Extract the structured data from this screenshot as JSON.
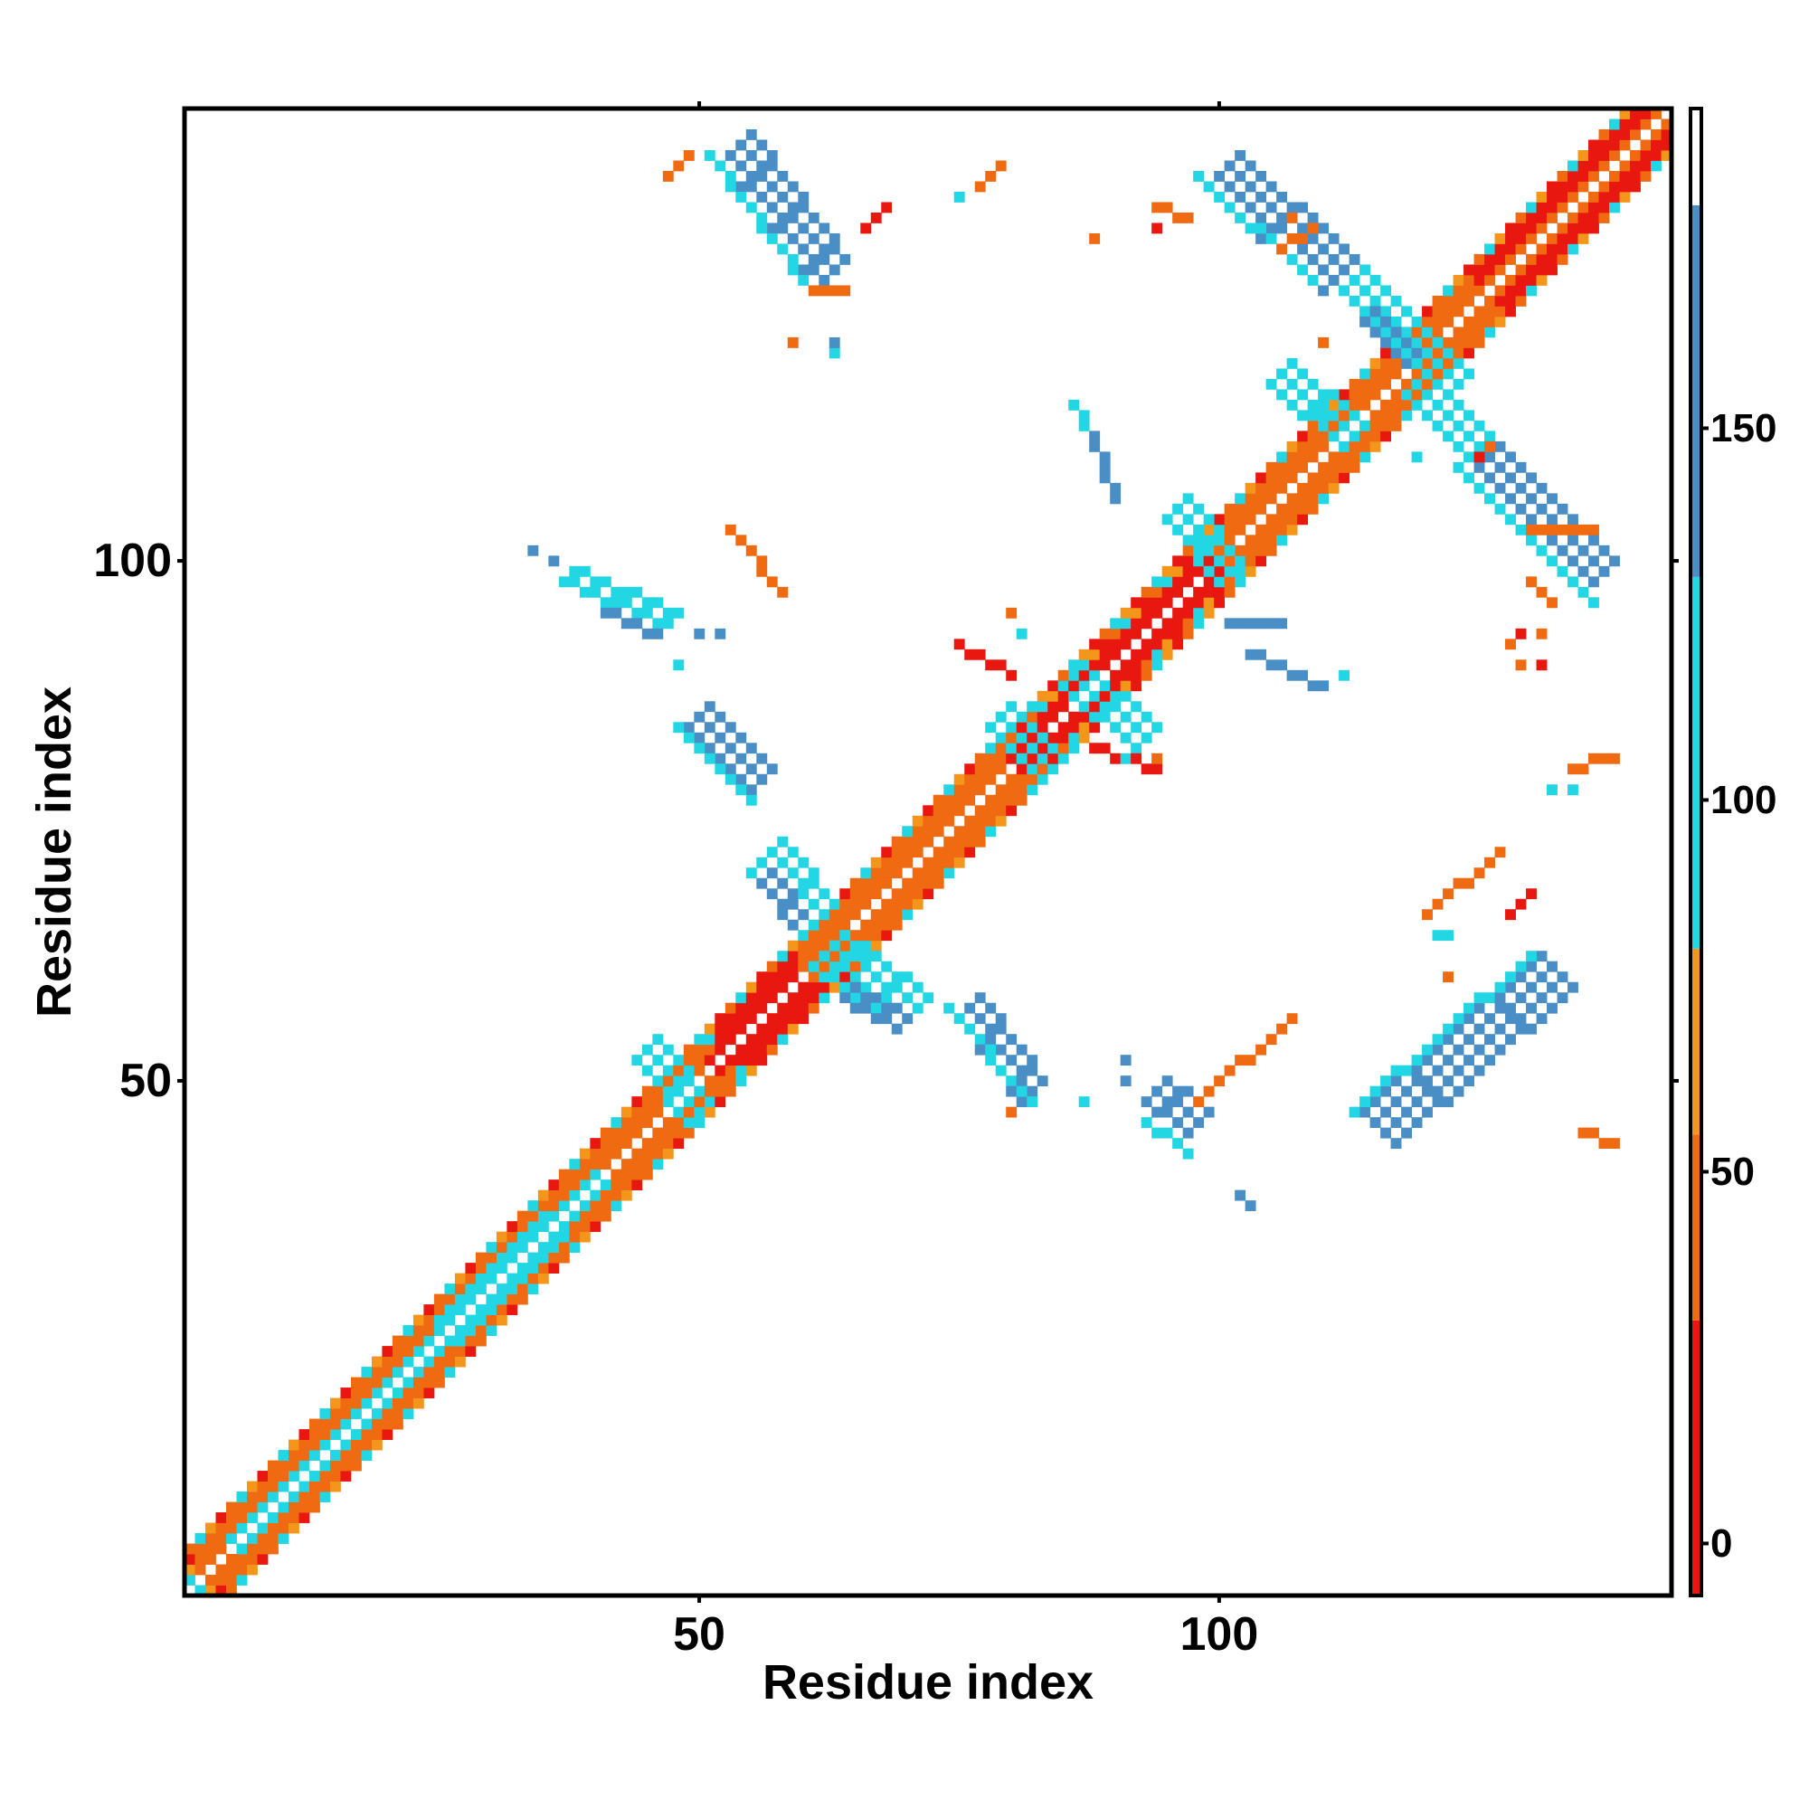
{
  "chart_data": {
    "type": "heatmap",
    "title": "",
    "xlabel": "Residue index",
    "ylabel": "Residue index",
    "xlim": [
      1,
      143
    ],
    "ylim": [
      1,
      143
    ],
    "x_ticks": [
      {
        "value": 50,
        "label": "50"
      },
      {
        "value": 100,
        "label": "100"
      }
    ],
    "y_ticks": [
      {
        "value": 50,
        "label": "50"
      },
      {
        "value": 100,
        "label": "100"
      }
    ],
    "colorbar": {
      "ticks": [
        {
          "value": 0,
          "label": "0"
        },
        {
          "value": 50,
          "label": "50"
        },
        {
          "value": 100,
          "label": "100"
        },
        {
          "value": 150,
          "label": "150"
        }
      ],
      "range": [
        -7,
        193
      ],
      "bands": [
        {
          "from": -7,
          "to": 30,
          "color": "#e8170f"
        },
        {
          "from": 30,
          "to": 55,
          "color": "#f06a12"
        },
        {
          "from": 55,
          "to": 80,
          "color": "#f4961c"
        },
        {
          "from": 80,
          "to": 130,
          "color": "#22d6e4"
        },
        {
          "from": 130,
          "to": 180,
          "color": "#4a8ec6"
        },
        {
          "from": 180,
          "to": 193,
          "color": "#ffffff"
        }
      ]
    },
    "palette": {
      "red": "#e8170f",
      "orange": "#f06a12",
      "amber": "#f4961c",
      "cyan": "#22d6e4",
      "lightblue": "#2fbde0",
      "steel": "#4a8ec6"
    },
    "diagonal": {
      "from": 1,
      "to": 143,
      "band_offsets": [
        1,
        2,
        3,
        4
      ]
    },
    "segments": [
      {
        "x": [
          2,
          50
        ],
        "y": [
          2,
          50
        ],
        "offsets": [
          1,
          2,
          3
        ],
        "color": "orange",
        "w": 1
      },
      {
        "x": [
          5,
          40
        ],
        "y": [
          5,
          40
        ],
        "offsets": [
          1
        ],
        "color": "cyan",
        "w": 1
      },
      {
        "x": [
          52,
          60
        ],
        "y": [
          52,
          60
        ],
        "offsets": [
          1,
          2,
          3
        ],
        "color": "red",
        "w": 1
      },
      {
        "x": [
          60,
          80
        ],
        "y": [
          60,
          80
        ],
        "offsets": [
          1,
          2,
          3
        ],
        "color": "orange",
        "w": 1
      },
      {
        "x": [
          80,
          100
        ],
        "y": [
          80,
          100
        ],
        "offsets": [
          1,
          2
        ],
        "color": "red",
        "w": 1
      },
      {
        "x": [
          100,
          143
        ],
        "y": [
          100,
          143
        ],
        "offsets": [
          1,
          2,
          3
        ],
        "color": "orange",
        "w": 1
      },
      {
        "x": [
          125,
          143
        ],
        "y": [
          125,
          143
        ],
        "offsets": [
          2,
          3
        ],
        "color": "red",
        "w": 1
      },
      {
        "x": [
          52,
          61
        ],
        "y": [
          138,
          126
        ],
        "color": "steel",
        "w": 4
      },
      {
        "x": [
          51,
          60
        ],
        "y": [
          139,
          127
        ],
        "color": "cyan",
        "w": 1
      },
      {
        "x": [
          99,
          110
        ],
        "y": [
          136,
          126
        ],
        "color": "steel",
        "w": 4
      },
      {
        "x": [
          98,
          109
        ],
        "y": [
          137,
          127
        ],
        "color": "cyan",
        "w": 1
      },
      {
        "x": [
          112,
          122
        ],
        "y": [
          126,
          116
        ],
        "color": "cyan",
        "w": 3
      },
      {
        "x": [
          114,
          118
        ],
        "y": [
          123,
          119
        ],
        "color": "steel",
        "w": 2
      },
      {
        "x": [
          118,
          124
        ],
        "y": [
          116,
          110
        ],
        "color": "cyan",
        "w": 3
      },
      {
        "x": [
          124,
          135
        ],
        "y": [
          108,
          97
        ],
        "color": "steel",
        "w": 4
      },
      {
        "x": [
          123,
          136
        ],
        "y": [
          109,
          96
        ],
        "color": "cyan",
        "w": 1
      },
      {
        "x": [
          114,
          131
        ],
        "y": [
          47,
          62
        ],
        "color": "steel",
        "w": 4
      },
      {
        "x": [
          113,
          130
        ],
        "y": [
          47,
          62
        ],
        "color": "cyan",
        "w": 1
      },
      {
        "x": [
          49,
          55
        ],
        "y": [
          84,
          78
        ],
        "color": "steel",
        "w": 3
      },
      {
        "x": [
          48,
          55
        ],
        "y": [
          84,
          77
        ],
        "color": "cyan",
        "w": 1
      },
      {
        "x": [
          55,
          60
        ],
        "y": [
          70,
          64
        ],
        "color": "cyan",
        "w": 4
      },
      {
        "x": [
          56,
          59
        ],
        "y": [
          69,
          65
        ],
        "color": "steel",
        "w": 2
      },
      {
        "x": [
          61,
          69
        ],
        "y": [
          61,
          55
        ],
        "color": "cyan",
        "w": 4
      },
      {
        "x": [
          64,
          69
        ],
        "y": [
          58,
          55
        ],
        "color": "steel",
        "w": 2
      },
      {
        "x": [
          75,
          81
        ],
        "y": [
          56,
          48
        ],
        "color": "steel",
        "w": 3
      },
      {
        "x": [
          74,
          82
        ],
        "y": [
          57,
          48
        ],
        "color": "cyan",
        "w": 1
      },
      {
        "x": [
          37,
          47
        ],
        "y": [
          98,
          94
        ],
        "color": "cyan",
        "w": 2
      },
      {
        "x": [
          41,
          46
        ],
        "y": [
          95,
          93
        ],
        "color": "steel",
        "w": 1
      },
      {
        "x": [
          93,
          97
        ],
        "y": [
          48,
          45
        ],
        "color": "steel",
        "w": 3
      },
      {
        "x": [
          93,
          97
        ],
        "y": [
          46,
          43
        ],
        "color": "cyan",
        "w": 1
      },
      {
        "x": [
          86,
          89
        ],
        "y": [
          115,
          110
        ],
        "color": "cyan",
        "w": 1
      },
      {
        "x": [
          88,
          90
        ],
        "y": [
          112,
          106
        ],
        "color": "steel",
        "w": 1
      },
      {
        "x": [
          101,
          106
        ],
        "y": [
          94,
          94
        ],
        "color": "steel",
        "w": 1
      },
      {
        "x": [
          103,
          110
        ],
        "y": [
          91,
          88
        ],
        "color": "steel",
        "w": 1
      },
      {
        "x": [
          78,
          83
        ],
        "y": [
          84,
          79
        ],
        "color": "cyan",
        "w": 3
      },
      {
        "x": [
          85,
          92
        ],
        "y": [
          88,
          82
        ],
        "color": "cyan",
        "w": 3
      },
      {
        "x": [
          105,
          112
        ],
        "y": [
          117,
          111
        ],
        "color": "cyan",
        "w": 3
      },
      {
        "x": [
          95,
          100
        ],
        "y": [
          104,
          98
        ],
        "color": "cyan",
        "w": 3
      },
      {
        "x": [
          44,
          49
        ],
        "y": [
          52,
          46
        ],
        "color": "cyan",
        "w": 3
      },
      {
        "x": [
          25,
          35
        ],
        "y": [
          25,
          35
        ],
        "offsets": [
          1,
          2
        ],
        "color": "cyan",
        "w": 1
      },
      {
        "x": [
          53,
          58
        ],
        "y": [
          103,
          97
        ],
        "color": "orange",
        "w": 1
      },
      {
        "x": [
          98,
          107
        ],
        "y": [
          48,
          56
        ],
        "color": "orange",
        "w": 1
      },
      {
        "x": [
          130,
          136
        ],
        "y": [
          103,
          103
        ],
        "color": "orange",
        "w": 1
      },
      {
        "x": [
          120,
          127
        ],
        "y": [
          66,
          72
        ],
        "color": "orange",
        "w": 1
      },
      {
        "x": [
          61,
          64
        ],
        "y": [
          126,
          126
        ],
        "color": "orange",
        "w": 1
      },
      {
        "x": [
          134,
          138
        ],
        "y": [
          80,
          81
        ],
        "color": "orange",
        "w": 1
      },
      {
        "x": [
          66,
          68
        ],
        "y": [
          132,
          134
        ],
        "color": "red",
        "w": 1
      },
      {
        "x": [
          128,
          130
        ],
        "y": [
          66,
          68
        ],
        "color": "red",
        "w": 1
      },
      {
        "x": [
          77,
          79
        ],
        "y": [
          136,
          138
        ],
        "color": "orange",
        "w": 1
      },
      {
        "x": [
          47,
          49
        ],
        "y": [
          137,
          139
        ],
        "color": "orange",
        "w": 1
      },
      {
        "x": [
          94,
          97
        ],
        "y": [
          134,
          133
        ],
        "color": "orange",
        "w": 1
      },
      {
        "x": [
          106,
          109
        ],
        "y": [
          130,
          132
        ],
        "color": "orange",
        "w": 1
      },
      {
        "x": [
          135,
          138
        ],
        "y": [
          45,
          44
        ],
        "color": "orange",
        "w": 1
      },
      {
        "x": [
          130,
          132
        ],
        "y": [
          98,
          96
        ],
        "color": "orange",
        "w": 1
      },
      {
        "x": [
          75,
          80
        ],
        "y": [
          92,
          89
        ],
        "color": "red",
        "w": 1
      },
      {
        "x": [
          88,
          94
        ],
        "y": [
          82,
          80
        ],
        "color": "red",
        "w": 1
      }
    ],
    "cells": [
      {
        "x": 34,
        "y": 101,
        "color": "steel"
      },
      {
        "x": 36,
        "y": 100,
        "color": "steel"
      },
      {
        "x": 50,
        "y": 93,
        "color": "steel"
      },
      {
        "x": 52,
        "y": 93,
        "color": "steel"
      },
      {
        "x": 48,
        "y": 90,
        "color": "cyan"
      },
      {
        "x": 63,
        "y": 120,
        "color": "cyan"
      },
      {
        "x": 63,
        "y": 121,
        "color": "steel"
      },
      {
        "x": 59,
        "y": 121,
        "color": "orange"
      },
      {
        "x": 75,
        "y": 135,
        "color": "cyan"
      },
      {
        "x": 91,
        "y": 52,
        "color": "steel"
      },
      {
        "x": 91,
        "y": 50,
        "color": "steel"
      },
      {
        "x": 87,
        "y": 48,
        "color": "cyan"
      },
      {
        "x": 102,
        "y": 39,
        "color": "steel"
      },
      {
        "x": 103,
        "y": 38,
        "color": "steel"
      },
      {
        "x": 122,
        "y": 64,
        "color": "cyan"
      },
      {
        "x": 121,
        "y": 64,
        "color": "cyan"
      },
      {
        "x": 122,
        "y": 60,
        "color": "orange"
      },
      {
        "x": 132,
        "y": 78,
        "color": "cyan"
      },
      {
        "x": 134,
        "y": 78,
        "color": "cyan"
      },
      {
        "x": 88,
        "y": 131,
        "color": "orange"
      },
      {
        "x": 94,
        "y": 132,
        "color": "red"
      },
      {
        "x": 128,
        "y": 92,
        "color": "orange"
      },
      {
        "x": 129,
        "y": 93,
        "color": "red"
      },
      {
        "x": 131,
        "y": 93,
        "color": "orange"
      },
      {
        "x": 129,
        "y": 90,
        "color": "orange"
      },
      {
        "x": 131,
        "y": 90,
        "color": "red"
      },
      {
        "x": 80,
        "y": 95,
        "color": "orange"
      },
      {
        "x": 81,
        "y": 93,
        "color": "cyan"
      },
      {
        "x": 91,
        "y": 81,
        "color": "cyan"
      },
      {
        "x": 94,
        "y": 81,
        "color": "orange"
      },
      {
        "x": 112,
        "y": 89,
        "color": "cyan"
      },
      {
        "x": 80,
        "y": 47,
        "color": "orange"
      },
      {
        "x": 97,
        "y": 43,
        "color": "cyan"
      },
      {
        "x": 107,
        "y": 133,
        "color": "orange"
      },
      {
        "x": 110,
        "y": 121,
        "color": "orange"
      },
      {
        "x": 119,
        "y": 110,
        "color": "cyan"
      },
      {
        "x": 125,
        "y": 110,
        "color": "red"
      },
      {
        "x": 126,
        "y": 111,
        "color": "orange"
      }
    ]
  }
}
